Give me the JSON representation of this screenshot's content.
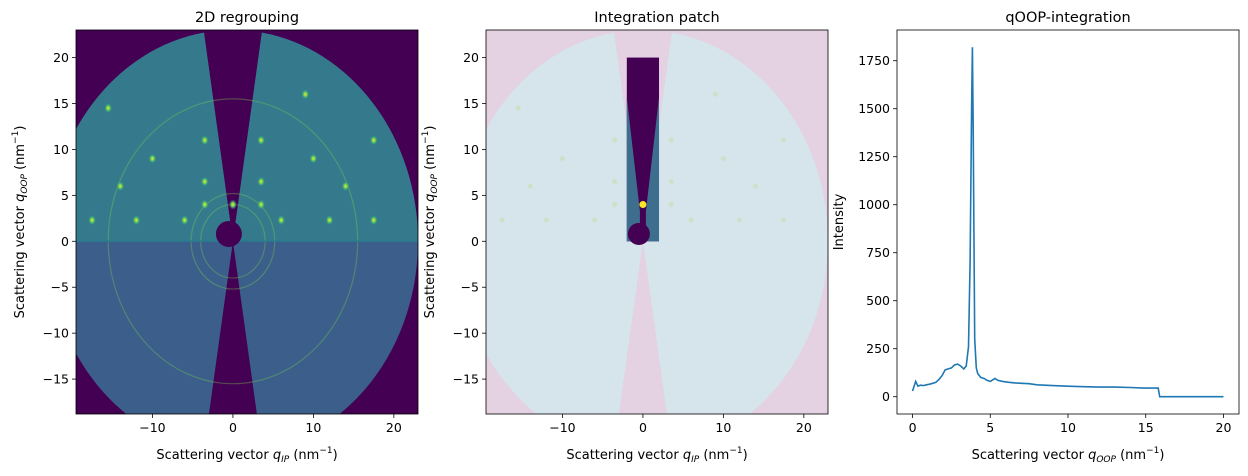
{
  "chart_data": [
    {
      "type": "heatmap",
      "title": "2D regrouping",
      "xlabel_prefix": "Scattering vector ",
      "xlabel_q": "q",
      "xlabel_sub": "IP",
      "xlabel_unit": " (nm",
      "xlabel_exp": "−1",
      "xlabel_end": ")",
      "ylabel_prefix": "Scattering vector ",
      "ylabel_q": "q",
      "ylabel_sub": "OOP",
      "ylabel_unit": " (nm",
      "ylabel_exp": "−1",
      "ylabel_end": ")",
      "xlim": [
        -19.5,
        23
      ],
      "ylim": [
        -18.8,
        23
      ],
      "xticks": [
        -10,
        0,
        10,
        20
      ],
      "yticks": [
        -15,
        -10,
        -5,
        0,
        5,
        10,
        15,
        20
      ],
      "colormap": "viridis",
      "background_color": "#440154",
      "detector_color": "#3b5f8a",
      "upper_color": "#357a8c",
      "beamstop_color": "#440154",
      "detector_radius": 23,
      "wedge_half_angle_deg": 9,
      "spots": [
        [
          -17.5,
          2.3
        ],
        [
          -12,
          2.3
        ],
        [
          -6,
          2.3
        ],
        [
          -3.5,
          6.5
        ],
        [
          3.5,
          6.5
        ],
        [
          6,
          2.3
        ],
        [
          12,
          2.3
        ],
        [
          17.5,
          2.3
        ],
        [
          -3.5,
          11
        ],
        [
          3.5,
          11
        ],
        [
          -10,
          9
        ],
        [
          10,
          9
        ],
        [
          -14,
          6
        ],
        [
          14,
          6
        ],
        [
          17.5,
          11
        ],
        [
          -15.5,
          14.5
        ],
        [
          9,
          16
        ],
        [
          3.5,
          4
        ],
        [
          -3.5,
          4
        ],
        [
          0,
          4
        ]
      ],
      "rings": [
        4,
        5.2,
        15.5
      ]
    },
    {
      "type": "heatmap",
      "title": "Integration patch",
      "xlabel_prefix": "Scattering vector ",
      "xlabel_q": "q",
      "xlabel_sub": "IP",
      "xlabel_unit": " (nm",
      "xlabel_exp": "−1",
      "xlabel_end": ")",
      "ylabel_prefix": "Scattering vector ",
      "ylabel_q": "q",
      "ylabel_sub": "OOP",
      "ylabel_unit": " (nm",
      "ylabel_exp": "−1",
      "ylabel_end": ")",
      "xlim": [
        -19.5,
        23
      ],
      "ylim": [
        -18.8,
        23
      ],
      "xticks": [
        -10,
        0,
        10,
        20
      ],
      "yticks": [
        -15,
        -10,
        -5,
        0,
        5,
        10,
        15,
        20
      ],
      "background_color": "#e4d1e2",
      "overlay_color": "#d6e4ec",
      "patch_color": "#440154",
      "patch_fill_color": "#3e6e8e",
      "patch_x_range": [
        -2,
        2
      ],
      "patch_y_range": [
        0,
        20
      ]
    },
    {
      "type": "line",
      "title": "qOOP-integration",
      "xlabel_prefix": "Scattering vector ",
      "xlabel_q": "q",
      "xlabel_sub": "OOP",
      "xlabel_unit": " (nm",
      "xlabel_exp": "−1",
      "xlabel_end": ")",
      "ylabel": "Intensity",
      "xlim": [
        -1,
        21
      ],
      "ylim": [
        -90,
        1910
      ],
      "xticks": [
        0,
        5,
        10,
        15,
        20
      ],
      "yticks": [
        0,
        250,
        500,
        750,
        1000,
        1250,
        1500,
        1750
      ],
      "line_color": "#1f77b4",
      "series": [
        {
          "x": [
            0,
            0.2,
            0.35,
            0.5,
            0.7,
            0.9,
            1.1,
            1.3,
            1.5,
            1.7,
            1.9,
            2.1,
            2.3,
            2.5,
            2.7,
            2.9,
            3.1,
            3.3,
            3.45,
            3.6,
            3.7,
            3.8,
            3.85,
            3.9,
            3.95,
            4.0,
            4.1,
            4.2,
            4.4,
            4.6,
            4.8,
            5.0,
            5.3,
            5.5,
            5.8,
            6.2,
            6.6,
            7.0,
            7.5,
            8.0,
            8.5,
            9,
            10,
            11,
            12,
            13,
            14,
            15,
            15.8,
            15.9,
            16,
            17,
            18,
            19,
            20
          ],
          "values": [
            30,
            80,
            55,
            60,
            58,
            62,
            65,
            70,
            75,
            90,
            110,
            140,
            145,
            150,
            165,
            170,
            160,
            145,
            160,
            260,
            700,
            1500,
            1820,
            1400,
            800,
            300,
            150,
            120,
            100,
            95,
            85,
            80,
            95,
            85,
            80,
            75,
            72,
            70,
            68,
            62,
            60,
            58,
            55,
            52,
            50,
            50,
            48,
            45,
            45,
            0,
            0,
            0,
            0,
            0,
            0
          ]
        }
      ]
    }
  ]
}
